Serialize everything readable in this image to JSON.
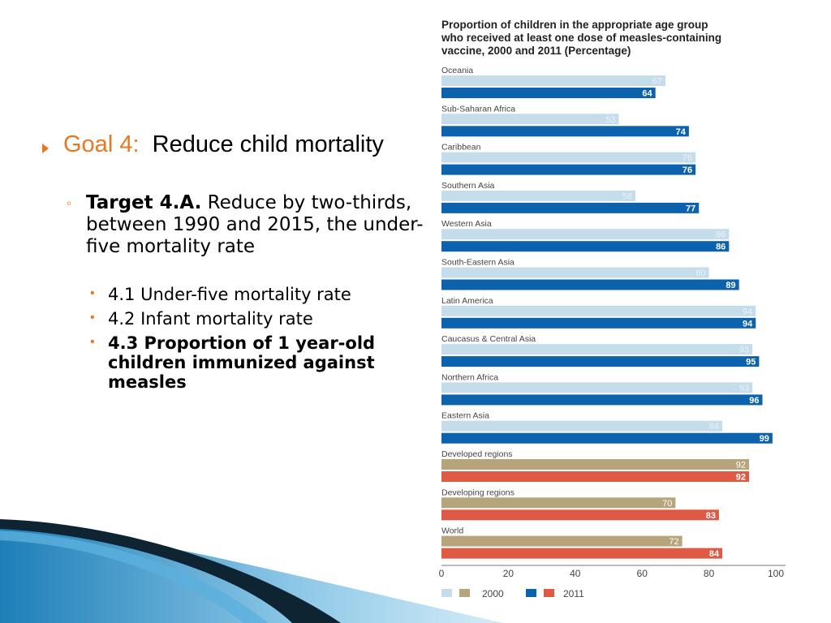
{
  "slide": {
    "goal_label": "Goal 4:",
    "goal_text": "Reduce child mortality",
    "target_label": "Target 4.A.",
    "target_text": "Reduce by two-thirds, between 1990 and 2015, the under-five mortality rate",
    "indicators": [
      "4.1 Under-five mortality rate",
      "4.2 Infant mortality rate",
      "4.3 Proportion of 1 year-old children immunized against measles"
    ]
  },
  "colors": {
    "accent_orange": "#E87722",
    "bar_2000_regional": "#C5DCEB",
    "bar_2011_regional": "#0D62AE",
    "bar_2000_aggregate": "#B6A57C",
    "bar_2011_aggregate": "#DE5A44"
  },
  "chart_data": {
    "type": "bar",
    "orientation": "horizontal",
    "title": "Proportion of children in the appropriate age group who received at least one dose of measles-containing vaccine, 2000 and 2011 (Percentage)",
    "categories": [
      "Oceania",
      "Sub-Saharan Africa",
      "Caribbean",
      "Southern Asia",
      "Western Asia",
      "South-Eastern Asia",
      "Latin America",
      "Caucasus & Central Asia",
      "Northern Africa",
      "Eastern Asia",
      "Developed regions",
      "Developing regions",
      "World"
    ],
    "series": [
      {
        "name": "2000",
        "values": [
          67,
          53,
          76,
          58,
          86,
          80,
          94,
          93,
          93,
          84,
          92,
          70,
          72
        ]
      },
      {
        "name": "2011",
        "values": [
          64,
          74,
          76,
          77,
          86,
          89,
          94,
          95,
          96,
          99,
          92,
          83,
          84
        ]
      }
    ],
    "aggregate_categories": [
      "Developed regions",
      "Developing regions",
      "World"
    ],
    "xlim": [
      0,
      100
    ],
    "xticks": [
      0,
      20,
      40,
      60,
      80,
      100
    ],
    "legend": {
      "placement": "bottom-left",
      "labels": [
        "2000",
        "2011"
      ]
    },
    "grid": false
  }
}
